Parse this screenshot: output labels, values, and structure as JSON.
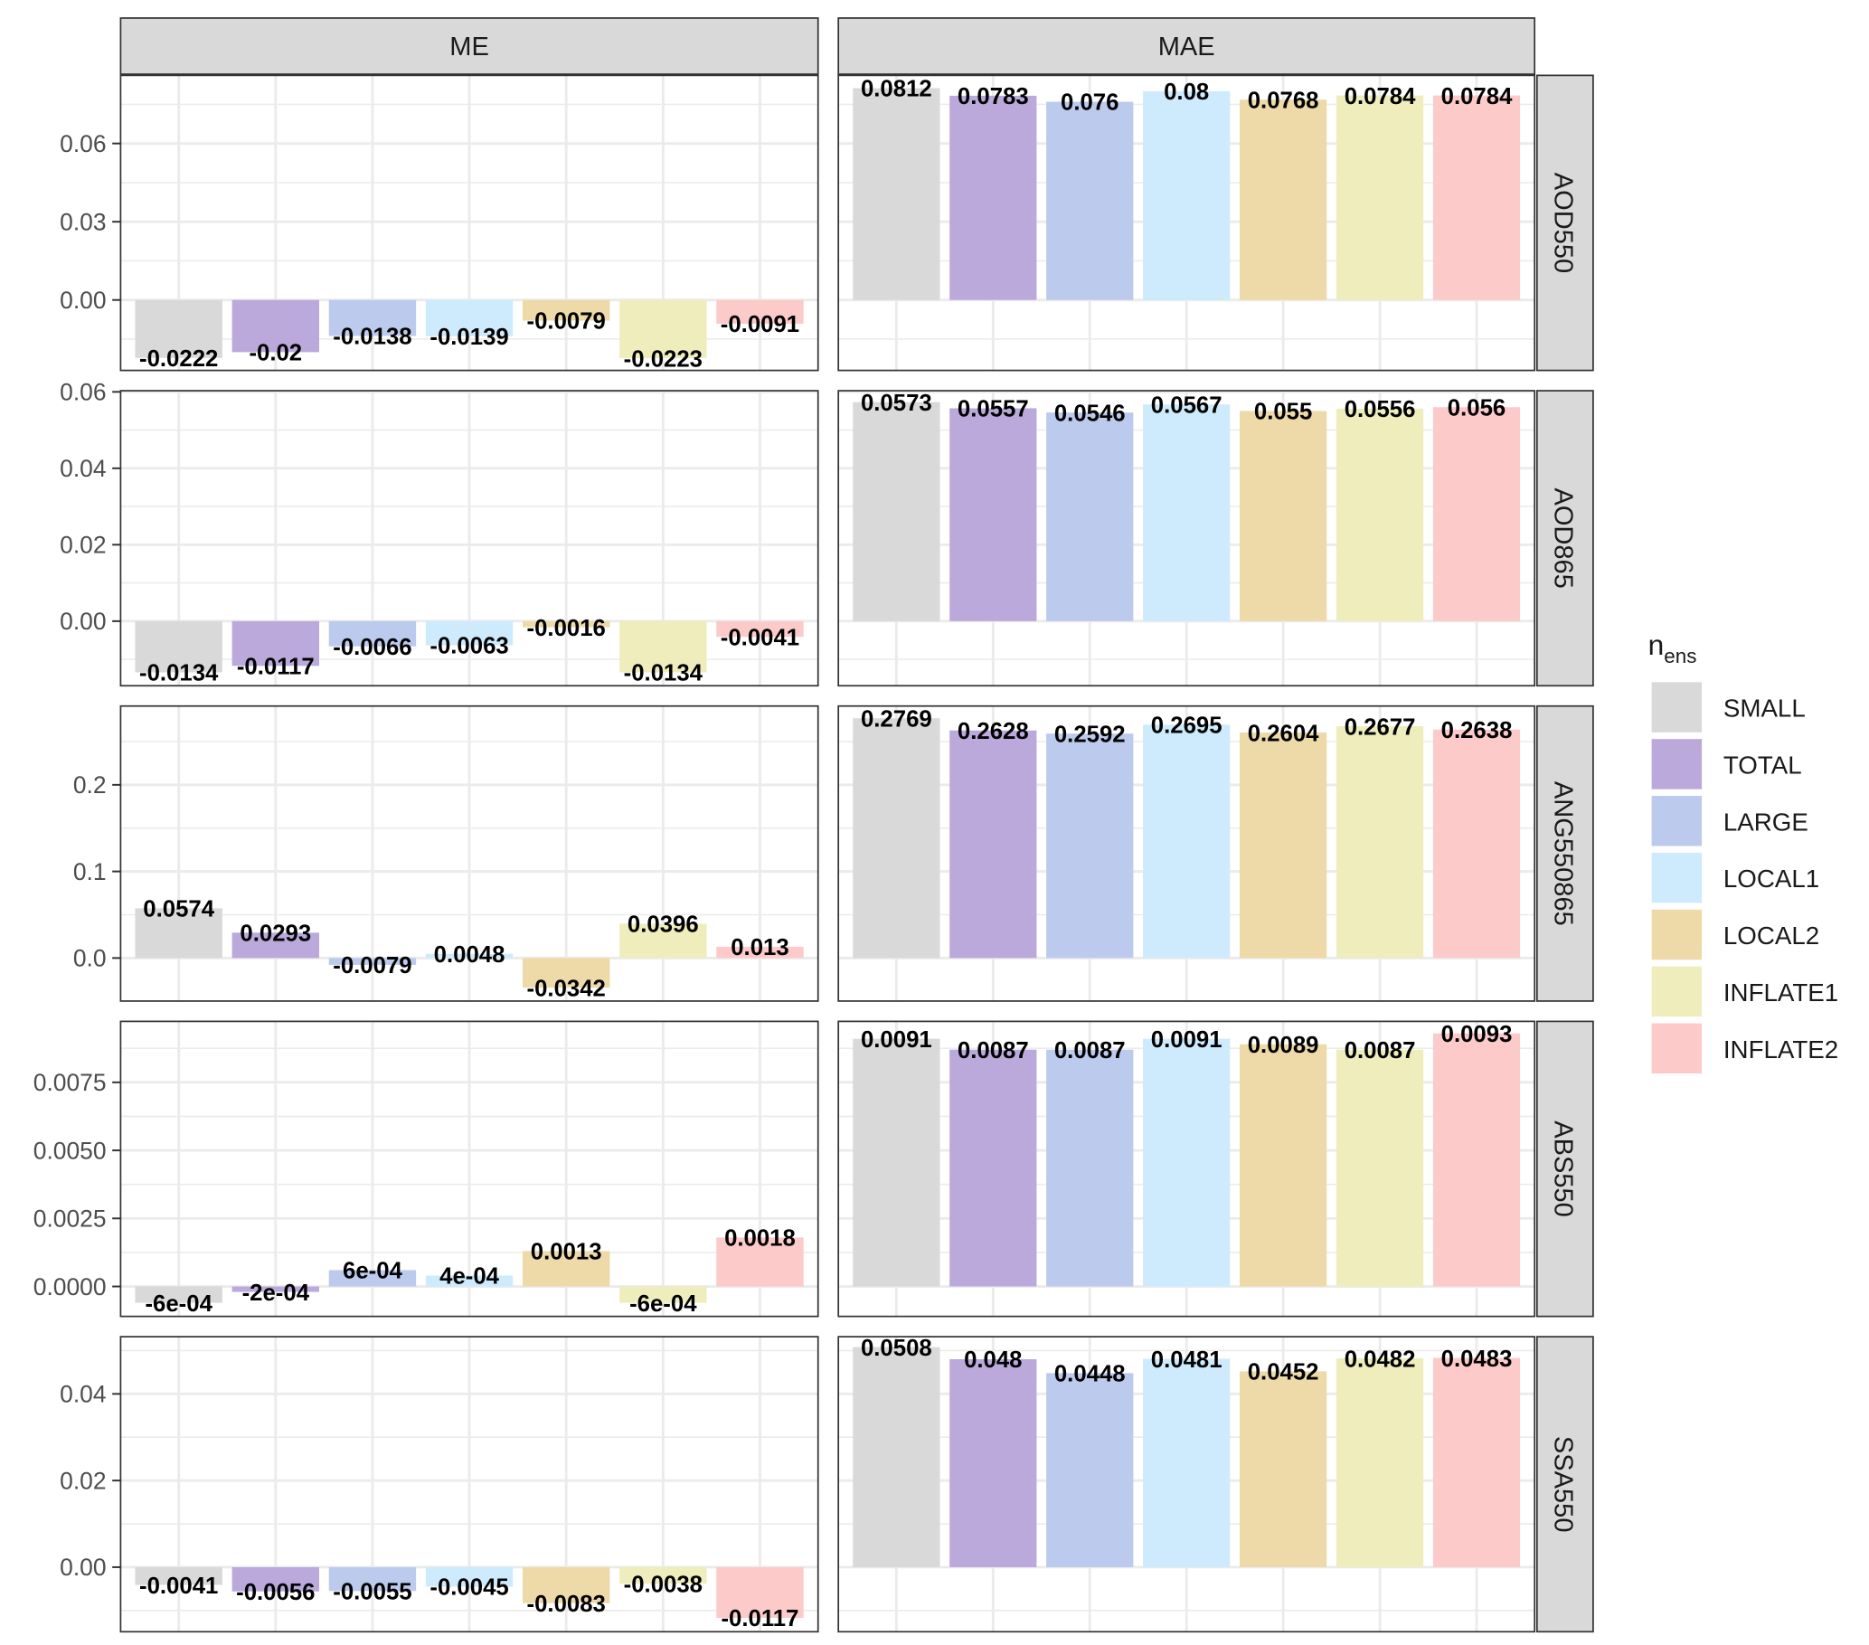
{
  "chart_data": {
    "type": "bar",
    "layout": "facet grid (rows share y scale within row, free across rows)",
    "grid": true,
    "legend_position": "right",
    "legend": {
      "title_main": "n",
      "title_sub": "ens",
      "entries": [
        "SMALL",
        "TOTAL",
        "LARGE",
        "LOCAL1",
        "LOCAL2",
        "INFLATE1",
        "INFLATE2"
      ]
    },
    "categories": [
      "SMALL",
      "TOTAL",
      "LARGE",
      "LOCAL1",
      "LOCAL2",
      "INFLATE1",
      "INFLATE2"
    ],
    "colors": [
      "#d9d9d9",
      "#bba9dc",
      "#bccbed",
      "#cdebfc",
      "#eedaa8",
      "#eeedbb",
      "#fdcaca"
    ],
    "columns": [
      "ME",
      "MAE"
    ],
    "rows": [
      {
        "name": "AOD550",
        "ylim": [
          -0.027,
          0.0861
        ],
        "ticks": [
          "0.00",
          "0.03",
          "0.06"
        ],
        "tick_values": [
          0,
          0.03,
          0.06
        ],
        "ME": {
          "values": [
            -0.0222,
            -0.02,
            -0.0138,
            -0.0139,
            -0.0079,
            -0.0223,
            -0.0091
          ],
          "labels": [
            "-0.0222",
            "-0.02",
            "-0.0138",
            "-0.0139",
            "-0.0079",
            "-0.0223",
            "-0.0091"
          ]
        },
        "MAE": {
          "values": [
            0.0812,
            0.0783,
            0.076,
            0.08,
            0.0768,
            0.0784,
            0.0784
          ],
          "labels": [
            "0.0812",
            "0.0783",
            "0.076",
            "0.08",
            "0.0768",
            "0.0784",
            "0.0784"
          ]
        }
      },
      {
        "name": "AOD865",
        "ylim": [
          -0.0169,
          0.0603
        ],
        "ticks": [
          "0.00",
          "0.02",
          "0.04",
          "0.06"
        ],
        "tick_values": [
          0,
          0.02,
          0.04,
          0.06
        ],
        "ME": {
          "values": [
            -0.0134,
            -0.0117,
            -0.0066,
            -0.0063,
            -0.0016,
            -0.0134,
            -0.0041
          ],
          "labels": [
            "-0.0134",
            "-0.0117",
            "-0.0066",
            "-0.0063",
            "-0.0016",
            "-0.0134",
            "-0.0041"
          ]
        },
        "MAE": {
          "values": [
            0.0573,
            0.0557,
            0.0546,
            0.0567,
            0.055,
            0.0556,
            0.056
          ],
          "labels": [
            "0.0573",
            "0.0557",
            "0.0546",
            "0.0567",
            "0.055",
            "0.0556",
            "0.056"
          ]
        }
      },
      {
        "name": "ANG550865",
        "ylim": [
          -0.0497,
          0.291
        ],
        "ticks": [
          "0.0",
          "0.1",
          "0.2"
        ],
        "tick_values": [
          0,
          0.1,
          0.2
        ],
        "ME": {
          "values": [
            0.0574,
            0.0293,
            -0.0079,
            0.0048,
            -0.0342,
            0.0396,
            0.013
          ],
          "labels": [
            "0.0574",
            "0.0293",
            "-0.0079",
            "0.0048",
            "-0.0342",
            "0.0396",
            "0.013"
          ]
        },
        "MAE": {
          "values": [
            0.2769,
            0.2628,
            0.2592,
            0.2695,
            0.2604,
            0.2677,
            0.2638
          ],
          "labels": [
            "0.2769",
            "0.2628",
            "0.2592",
            "0.2695",
            "0.2604",
            "0.2677",
            "0.2638"
          ]
        }
      },
      {
        "name": "ABS550",
        "ylim": [
          -0.0011,
          0.00974
        ],
        "ticks": [
          "0.0000",
          "0.0025",
          "0.0050",
          "0.0075"
        ],
        "tick_values": [
          0,
          0.0025,
          0.005,
          0.0075
        ],
        "ME": {
          "values": [
            -0.0006,
            -0.0002,
            0.0006,
            0.0004,
            0.0013,
            -0.0006,
            0.0018
          ],
          "labels": [
            "-6e-04",
            "-2e-04",
            "6e-04",
            "4e-04",
            "0.0013",
            "-6e-04",
            "0.0018"
          ]
        },
        "MAE": {
          "values": [
            0.0091,
            0.0087,
            0.0087,
            0.0091,
            0.0089,
            0.0087,
            0.0093
          ],
          "labels": [
            "0.0091",
            "0.0087",
            "0.0087",
            "0.0091",
            "0.0089",
            "0.0087",
            "0.0093"
          ]
        }
      },
      {
        "name": "SSA550",
        "ylim": [
          -0.0149,
          0.0532
        ],
        "ticks": [
          "0.00",
          "0.02",
          "0.04"
        ],
        "tick_values": [
          0,
          0.02,
          0.04
        ],
        "ME": {
          "values": [
            -0.0041,
            -0.0056,
            -0.0055,
            -0.0045,
            -0.0083,
            -0.0038,
            -0.0117
          ],
          "labels": [
            "-0.0041",
            "-0.0056",
            "-0.0055",
            "-0.0045",
            "-0.0083",
            "-0.0038",
            "-0.0117"
          ]
        },
        "MAE": {
          "values": [
            0.0508,
            0.048,
            0.0448,
            0.0481,
            0.0452,
            0.0482,
            0.0483
          ],
          "labels": [
            "0.0508",
            "0.048",
            "0.0448",
            "0.0481",
            "0.0452",
            "0.0482",
            "0.0483"
          ]
        }
      }
    ]
  }
}
